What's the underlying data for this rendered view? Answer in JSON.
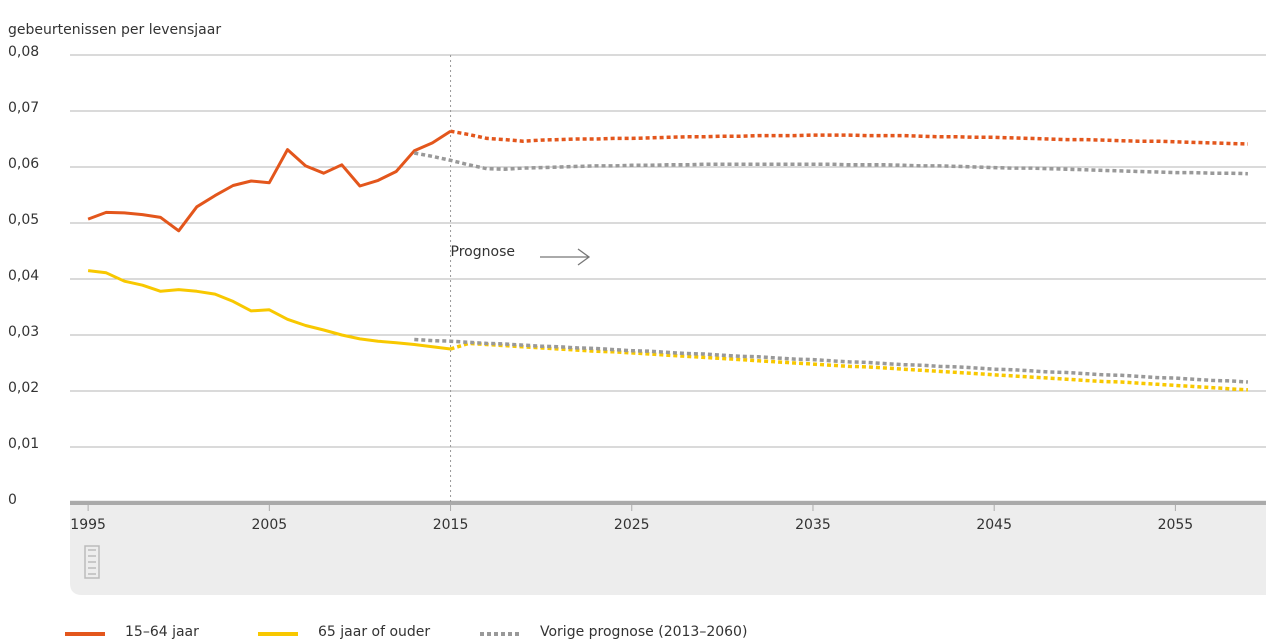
{
  "chart_data": {
    "type": "line",
    "y_label": "gebeurtenissen per levensjaar",
    "annotation": "Prognose",
    "forecast_start": 2015,
    "x": [
      1995,
      1996,
      1997,
      1998,
      1999,
      2000,
      2001,
      2002,
      2003,
      2004,
      2005,
      2006,
      2007,
      2008,
      2009,
      2010,
      2011,
      2012,
      2013,
      2014,
      2015,
      2016,
      2017,
      2018,
      2019,
      2020,
      2021,
      2022,
      2023,
      2024,
      2025,
      2026,
      2027,
      2028,
      2029,
      2030,
      2031,
      2032,
      2033,
      2034,
      2035,
      2036,
      2037,
      2038,
      2039,
      2040,
      2041,
      2042,
      2043,
      2044,
      2045,
      2046,
      2047,
      2048,
      2049,
      2050,
      2051,
      2052,
      2053,
      2054,
      2055,
      2056,
      2057,
      2058,
      2059
    ],
    "xlim": [
      1994,
      2060
    ],
    "xticks": [
      1995,
      2005,
      2015,
      2025,
      2035,
      2045,
      2055
    ],
    "ylim": [
      0,
      0.08
    ],
    "yticks": [
      0,
      {
        "value": 0.01,
        "label": "0,01"
      },
      {
        "value": 0.02,
        "label": "0,02"
      },
      {
        "value": 0.03,
        "label": "0,03"
      },
      {
        "value": 0.04,
        "label": "0,04"
      },
      {
        "value": 0.05,
        "label": "0,05"
      },
      {
        "value": 0.06,
        "label": "0,06"
      },
      {
        "value": 0.07,
        "label": "0,07"
      },
      {
        "value": 0.08,
        "label": "0,08"
      }
    ],
    "grid": true,
    "series": [
      {
        "name": "15–64 jaar",
        "color": "#e3561c",
        "values": [
          0.0507,
          0.0519,
          0.0518,
          0.0515,
          0.051,
          0.0486,
          0.0529,
          0.0549,
          0.0567,
          0.0575,
          0.0572,
          0.0631,
          0.0602,
          0.0589,
          0.0604,
          0.0566,
          0.0576,
          0.0592,
          0.0629,
          0.0643,
          0.0664,
          0.0658,
          0.0651,
          0.0649,
          0.0646,
          0.0648,
          0.0649,
          0.065,
          0.065,
          0.0651,
          0.0651,
          0.0652,
          0.0653,
          0.0654,
          0.0654,
          0.0655,
          0.0655,
          0.0656,
          0.0656,
          0.0656,
          0.0657,
          0.0657,
          0.0657,
          0.0656,
          0.0656,
          0.0656,
          0.0655,
          0.0654,
          0.0654,
          0.0653,
          0.0653,
          0.0652,
          0.0651,
          0.065,
          0.0649,
          0.0649,
          0.0648,
          0.0647,
          0.0646,
          0.0646,
          0.0645,
          0.0644,
          0.0643,
          0.0642,
          0.0641
        ]
      },
      {
        "name": "65 jaar of ouder",
        "color": "#f8c800",
        "values": [
          0.0415,
          0.0411,
          0.0396,
          0.0389,
          0.0378,
          0.0381,
          0.0378,
          0.0373,
          0.036,
          0.0343,
          0.0345,
          0.0328,
          0.0317,
          0.0309,
          0.03,
          0.0293,
          0.0289,
          0.0286,
          0.0283,
          0.0279,
          0.0275,
          0.0285,
          0.0283,
          0.0281,
          0.0279,
          0.0277,
          0.0275,
          0.0273,
          0.0271,
          0.027,
          0.0268,
          0.0266,
          0.0264,
          0.0262,
          0.026,
          0.0258,
          0.0256,
          0.0254,
          0.0252,
          0.025,
          0.0248,
          0.0246,
          0.0244,
          0.0243,
          0.0241,
          0.0239,
          0.0237,
          0.0235,
          0.0233,
          0.0231,
          0.0229,
          0.0227,
          0.0225,
          0.0223,
          0.0221,
          0.0219,
          0.0217,
          0.0216,
          0.0214,
          0.0212,
          0.021,
          0.0208,
          0.0206,
          0.0204,
          0.0202
        ]
      },
      {
        "name": "Vorige prognose (2013–2060)",
        "color": "#999999",
        "lines": [
          [
            null,
            null,
            null,
            null,
            null,
            null,
            null,
            null,
            null,
            null,
            null,
            null,
            null,
            null,
            null,
            null,
            null,
            null,
            0.0625,
            0.0619,
            0.0612,
            0.0604,
            0.0597,
            0.0596,
            0.0598,
            0.0599,
            0.06,
            0.0601,
            0.0602,
            0.0602,
            0.0603,
            0.0603,
            0.0604,
            0.0604,
            0.0605,
            0.0605,
            0.0605,
            0.0605,
            0.0605,
            0.0605,
            0.0605,
            0.0605,
            0.0604,
            0.0604,
            0.0604,
            0.0603,
            0.0602,
            0.0602,
            0.0601,
            0.06,
            0.0599,
            0.0598,
            0.0598,
            0.0597,
            0.0596,
            0.0595,
            0.0594,
            0.0593,
            0.0592,
            0.0591,
            0.059,
            0.059,
            0.0589,
            0.0589,
            0.0588
          ],
          [
            null,
            null,
            null,
            null,
            null,
            null,
            null,
            null,
            null,
            null,
            null,
            null,
            null,
            null,
            null,
            null,
            null,
            null,
            0.0292,
            0.029,
            0.0289,
            0.0287,
            0.0285,
            0.0284,
            0.0282,
            0.028,
            0.0279,
            0.0277,
            0.0276,
            0.0274,
            0.0272,
            0.0271,
            0.0269,
            0.0267,
            0.0266,
            0.0264,
            0.0262,
            0.0261,
            0.0259,
            0.0257,
            0.0256,
            0.0254,
            0.0252,
            0.0251,
            0.0249,
            0.0247,
            0.0246,
            0.0244,
            0.0243,
            0.0241,
            0.0239,
            0.0238,
            0.0236,
            0.0234,
            0.0233,
            0.0231,
            0.0229,
            0.0228,
            0.0226,
            0.0224,
            0.0223,
            0.0221,
            0.0219,
            0.0218,
            0.0216
          ]
        ]
      }
    ]
  }
}
